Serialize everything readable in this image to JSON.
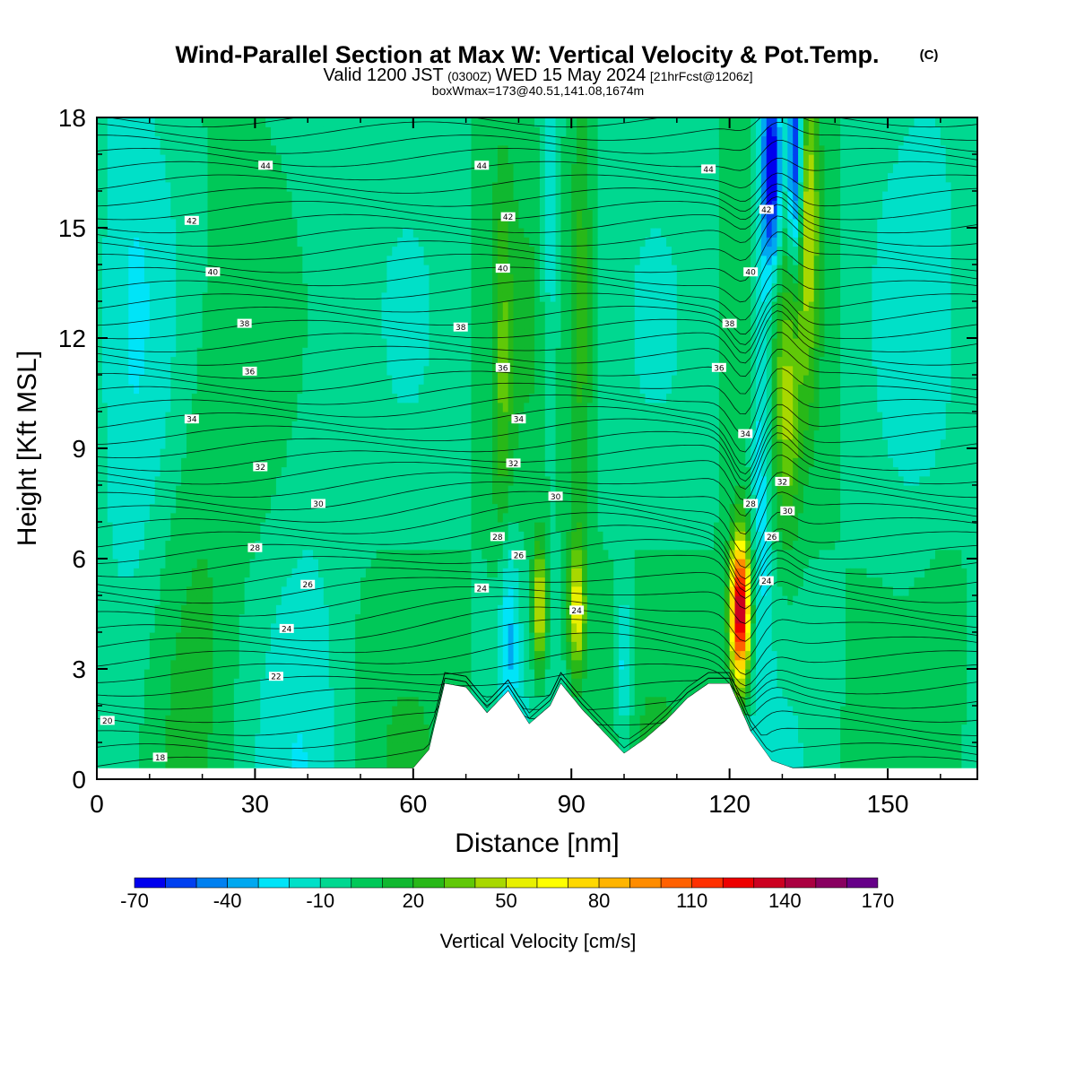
{
  "title": {
    "main": "Wind-Parallel Section at Max W: Vertical Velocity & Pot.Temp.",
    "copyright": "(C)",
    "valid_prefix": "Valid 1200 JST",
    "valid_zulu": "(0300Z)",
    "valid_date": "WED 15 May 2024",
    "forecast": "[21hrFcst@1206z]",
    "box": "boxWmax=173@40.51,141.08,1674m"
  },
  "chart_data": {
    "type": "heatmap",
    "xlabel": "Distance [nm]",
    "ylabel": "Height [Kft MSL]",
    "xlim": [
      0,
      167
    ],
    "ylim": [
      0,
      18
    ],
    "xticks": [
      0,
      30,
      60,
      90,
      120,
      150
    ],
    "yticks": [
      0,
      3,
      6,
      9,
      12,
      15,
      18
    ],
    "colorbar": {
      "title": "Vertical Velocity [cm/s]",
      "min": -70,
      "max": 190,
      "step": 10,
      "labels": [
        -70,
        -40,
        -10,
        20,
        50,
        80,
        110,
        140,
        170
      ],
      "colors": [
        "#0000ee",
        "#0040f0",
        "#0080f0",
        "#00a8f0",
        "#00e4f8",
        "#00e0c8",
        "#00d890",
        "#00c858",
        "#10b830",
        "#28b818",
        "#60c808",
        "#a8d800",
        "#e8f000",
        "#ffff00",
        "#ffd800",
        "#ffb400",
        "#ff8c00",
        "#ff6000",
        "#ff3000",
        "#ee0000",
        "#cc0020",
        "#aa0040",
        "#880060",
        "#660088"
      ]
    },
    "terrain_heights_kft": {
      "x": [
        0,
        54,
        60,
        63,
        66,
        70,
        74,
        78,
        82,
        86,
        88,
        92,
        96,
        100,
        104,
        108,
        112,
        116,
        120,
        124,
        128,
        132,
        140,
        167
      ],
      "h": [
        0.3,
        0.3,
        0.3,
        0.8,
        2.6,
        2.5,
        1.8,
        2.4,
        1.5,
        2.0,
        2.6,
        1.9,
        1.3,
        0.7,
        1.1,
        1.6,
        2.2,
        2.6,
        2.6,
        1.3,
        0.5,
        0.3,
        0.3,
        0.3
      ]
    },
    "theta_contour_labels": [
      {
        "text": "44",
        "x": 32,
        "y": 16.7
      },
      {
        "text": "44",
        "x": 73,
        "y": 16.7
      },
      {
        "text": "44",
        "x": 116,
        "y": 16.6
      },
      {
        "text": "42",
        "x": 18,
        "y": 15.2
      },
      {
        "text": "42",
        "x": 78,
        "y": 15.3
      },
      {
        "text": "42",
        "x": 127,
        "y": 15.5
      },
      {
        "text": "40",
        "x": 22,
        "y": 13.8
      },
      {
        "text": "40",
        "x": 77,
        "y": 13.9
      },
      {
        "text": "40",
        "x": 124,
        "y": 13.8
      },
      {
        "text": "38",
        "x": 28,
        "y": 12.4
      },
      {
        "text": "38",
        "x": 69,
        "y": 12.3
      },
      {
        "text": "38",
        "x": 120,
        "y": 12.4
      },
      {
        "text": "36",
        "x": 29,
        "y": 11.1
      },
      {
        "text": "36",
        "x": 77,
        "y": 11.2
      },
      {
        "text": "36",
        "x": 118,
        "y": 11.2
      },
      {
        "text": "34",
        "x": 18,
        "y": 9.8
      },
      {
        "text": "34",
        "x": 80,
        "y": 9.8
      },
      {
        "text": "34",
        "x": 123,
        "y": 9.4
      },
      {
        "text": "32",
        "x": 31,
        "y": 8.5
      },
      {
        "text": "32",
        "x": 79,
        "y": 8.6
      },
      {
        "text": "32",
        "x": 130,
        "y": 8.1
      },
      {
        "text": "30",
        "x": 42,
        "y": 7.5
      },
      {
        "text": "30",
        "x": 87,
        "y": 7.7
      },
      {
        "text": "30",
        "x": 131,
        "y": 7.3
      },
      {
        "text": "28",
        "x": 30,
        "y": 6.3
      },
      {
        "text": "28",
        "x": 76,
        "y": 6.6
      },
      {
        "text": "28",
        "x": 124,
        "y": 7.5
      },
      {
        "text": "26",
        "x": 40,
        "y": 5.3
      },
      {
        "text": "26",
        "x": 80,
        "y": 6.1
      },
      {
        "text": "26",
        "x": 128,
        "y": 6.6
      },
      {
        "text": "24",
        "x": 36,
        "y": 4.1
      },
      {
        "text": "24",
        "x": 73,
        "y": 5.2
      },
      {
        "text": "24",
        "x": 91,
        "y": 4.6
      },
      {
        "text": "24",
        "x": 127,
        "y": 5.4
      },
      {
        "text": "22",
        "x": 34,
        "y": 2.8
      },
      {
        "text": "20",
        "x": 2,
        "y": 1.6
      },
      {
        "text": "18",
        "x": 12,
        "y": 0.6
      }
    ]
  }
}
